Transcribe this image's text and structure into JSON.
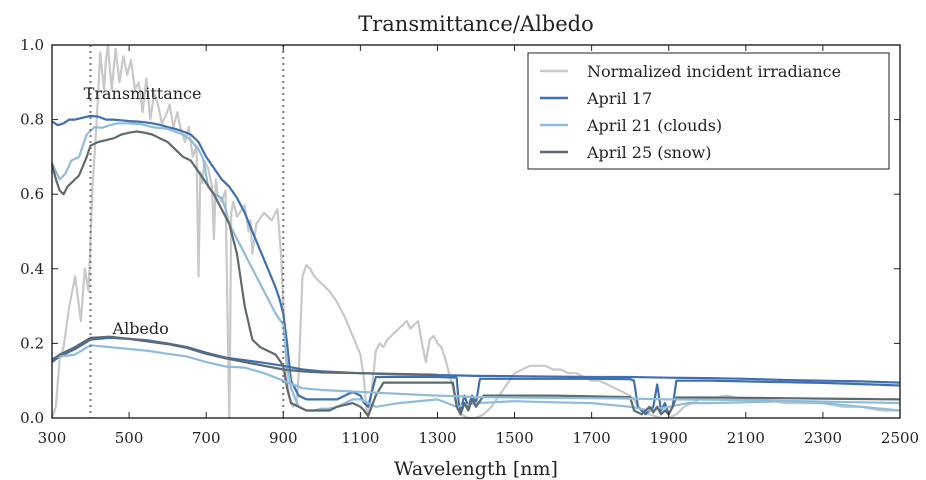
{
  "chart_data": {
    "type": "line",
    "title": "Transmittance/Albedo",
    "xlabel": "Wavelength [nm]",
    "ylabel": "",
    "xlim": [
      300,
      2500
    ],
    "ylim": [
      0.0,
      1.0
    ],
    "xticks": [
      300,
      500,
      700,
      900,
      1100,
      1300,
      1500,
      1700,
      1900,
      2100,
      2300,
      2500
    ],
    "xtick_labels": [
      "300",
      "500",
      "700",
      "900",
      "1100",
      "1300",
      "1500",
      "1700",
      "1900",
      "2100",
      "2300",
      "2500"
    ],
    "yticks": [
      0.0,
      0.2,
      0.4,
      0.6,
      0.8,
      1.0
    ],
    "ytick_labels": [
      "0.0",
      "0.2",
      "0.4",
      "0.6",
      "0.8",
      "1.0"
    ],
    "grid": false,
    "legend_position": "top-right",
    "vlines": [
      400,
      900
    ],
    "annotations": [
      {
        "text": "Transmittance",
        "x": 535,
        "y": 0.855
      },
      {
        "text": "Albedo",
        "x": 530,
        "y": 0.225
      }
    ],
    "series": [
      {
        "name": "Normalized incident irradiance",
        "color": "#c8c8c8",
        "width": 2.2,
        "x": [
          300,
          310,
          320,
          330,
          345,
          360,
          375,
          385,
          395,
          405,
          415,
          425,
          435,
          440,
          445,
          455,
          465,
          475,
          485,
          495,
          505,
          515,
          525,
          535,
          545,
          555,
          565,
          575,
          585,
          595,
          605,
          615,
          625,
          635,
          645,
          655,
          665,
          675,
          680,
          685,
          690,
          695,
          705,
          715,
          720,
          725,
          730,
          740,
          750,
          755,
          760,
          762,
          765,
          770,
          780,
          800,
          810,
          815,
          820,
          830,
          850,
          870,
          885,
          895,
          900,
          905,
          910,
          915,
          925,
          935,
          940,
          945,
          950,
          960,
          970,
          980,
          1000,
          1020,
          1040,
          1060,
          1080,
          1100,
          1110,
          1115,
          1120,
          1125,
          1130,
          1140,
          1150,
          1160,
          1170,
          1180,
          1190,
          1200,
          1210,
          1220,
          1230,
          1250,
          1260,
          1270,
          1280,
          1290,
          1300,
          1310,
          1320,
          1330,
          1340,
          1350,
          1360,
          1380,
          1400,
          1420,
          1440,
          1460,
          1480,
          1500,
          1520,
          1540,
          1560,
          1580,
          1600,
          1620,
          1640,
          1660,
          1680,
          1700,
          1720,
          1740,
          1760,
          1780,
          1800,
          1810,
          1820,
          1850,
          1880,
          1900,
          1920,
          1940,
          1960,
          1980,
          2000,
          2050,
          2100,
          2150,
          2200,
          2250,
          2300,
          2350,
          2400,
          2450,
          2500
        ],
        "y": [
          0.0,
          0.03,
          0.16,
          0.19,
          0.3,
          0.38,
          0.26,
          0.4,
          0.34,
          0.62,
          0.78,
          0.98,
          0.88,
          0.96,
          1.0,
          0.88,
          0.99,
          0.9,
          0.97,
          0.92,
          0.96,
          0.88,
          0.9,
          0.82,
          0.91,
          0.8,
          0.87,
          0.84,
          0.79,
          0.81,
          0.84,
          0.78,
          0.82,
          0.77,
          0.74,
          0.78,
          0.7,
          0.73,
          0.38,
          0.66,
          0.63,
          0.69,
          0.67,
          0.62,
          0.48,
          0.64,
          0.6,
          0.58,
          0.61,
          0.3,
          0.0,
          0.2,
          0.55,
          0.58,
          0.54,
          0.57,
          0.5,
          0.53,
          0.44,
          0.52,
          0.55,
          0.53,
          0.56,
          0.43,
          0.3,
          0.2,
          0.1,
          0.06,
          0.03,
          0.04,
          0.12,
          0.25,
          0.38,
          0.41,
          0.4,
          0.38,
          0.36,
          0.34,
          0.31,
          0.27,
          0.22,
          0.17,
          0.1,
          0.03,
          0.01,
          0.03,
          0.08,
          0.18,
          0.2,
          0.19,
          0.21,
          0.22,
          0.23,
          0.24,
          0.25,
          0.26,
          0.24,
          0.26,
          0.2,
          0.15,
          0.21,
          0.22,
          0.2,
          0.19,
          0.16,
          0.12,
          0.08,
          0.03,
          0.01,
          0.0,
          0.0,
          0.01,
          0.03,
          0.06,
          0.09,
          0.12,
          0.13,
          0.14,
          0.14,
          0.14,
          0.13,
          0.13,
          0.12,
          0.12,
          0.11,
          0.1,
          0.1,
          0.09,
          0.08,
          0.07,
          0.06,
          0.05,
          0.03,
          0.01,
          0.0,
          0.0,
          0.01,
          0.03,
          0.04,
          0.05,
          0.05,
          0.06,
          0.05,
          0.05,
          0.04,
          0.04,
          0.04,
          0.03,
          0.03,
          0.02,
          0.02
        ]
      },
      {
        "name": "April 17",
        "color": "#3f6fb0",
        "width": 2.2,
        "x": [
          300,
          315,
          330,
          345,
          360,
          380,
          400,
          420,
          440,
          460,
          480,
          500,
          520,
          540,
          560,
          580,
          600,
          620,
          640,
          660,
          680,
          700,
          720,
          740,
          760,
          780,
          800,
          820,
          840,
          860,
          880,
          890,
          895,
          900,
          910,
          920,
          940,
          960,
          980,
          1000,
          1020,
          1040,
          1060,
          1080,
          1100,
          1110,
          1120,
          1130,
          1140,
          1160,
          1200,
          1300,
          1350,
          1355,
          1360,
          1370,
          1380,
          1390,
          1400,
          1410,
          1500,
          1600,
          1700,
          1800,
          1810,
          1820,
          1840,
          1860,
          1870,
          1880,
          1890,
          1900,
          1910,
          1920,
          2000,
          2100,
          2200,
          2300,
          2400,
          2500
        ],
        "y": [
          0.795,
          0.785,
          0.79,
          0.8,
          0.8,
          0.805,
          0.81,
          0.808,
          0.8,
          0.8,
          0.798,
          0.796,
          0.795,
          0.793,
          0.79,
          0.786,
          0.78,
          0.775,
          0.768,
          0.76,
          0.74,
          0.7,
          0.67,
          0.64,
          0.62,
          0.59,
          0.55,
          0.5,
          0.45,
          0.4,
          0.35,
          0.32,
          0.3,
          0.28,
          0.2,
          0.1,
          0.06,
          0.05,
          0.05,
          0.05,
          0.05,
          0.05,
          0.06,
          0.07,
          0.06,
          0.04,
          0.03,
          0.07,
          0.11,
          0.11,
          0.11,
          0.11,
          0.108,
          0.04,
          0.02,
          0.06,
          0.03,
          0.06,
          0.04,
          0.105,
          0.105,
          0.105,
          0.105,
          0.104,
          0.1,
          0.03,
          0.01,
          0.03,
          0.09,
          0.02,
          0.04,
          0.01,
          0.03,
          0.1,
          0.1,
          0.098,
          0.096,
          0.094,
          0.091,
          0.087
        ]
      },
      {
        "name": "April 21 (clouds)",
        "color": "#8fbcd8",
        "width": 2.2,
        "x": [
          300,
          310,
          320,
          335,
          350,
          370,
          390,
          410,
          430,
          450,
          470,
          500,
          530,
          560,
          600,
          640,
          660,
          680,
          690,
          695,
          700,
          705,
          720,
          740,
          750,
          760,
          780,
          800,
          820,
          840,
          860,
          880,
          900,
          910,
          920,
          940,
          960,
          980,
          1000,
          1020,
          1040,
          1060,
          1080,
          1100,
          1120,
          1140,
          1200,
          1300,
          1350,
          1400,
          1500,
          1600,
          1700,
          1800,
          1850,
          1900,
          1950,
          2000,
          2100,
          2200,
          2300,
          2400,
          2500
        ],
        "y": [
          0.685,
          0.66,
          0.64,
          0.655,
          0.69,
          0.7,
          0.76,
          0.78,
          0.778,
          0.785,
          0.79,
          0.79,
          0.788,
          0.78,
          0.775,
          0.76,
          0.745,
          0.72,
          0.7,
          0.68,
          0.65,
          0.62,
          0.6,
          0.59,
          0.56,
          0.52,
          0.48,
          0.44,
          0.4,
          0.36,
          0.32,
          0.28,
          0.25,
          0.15,
          0.08,
          0.03,
          0.02,
          0.02,
          0.025,
          0.025,
          0.03,
          0.04,
          0.05,
          0.05,
          0.04,
          0.03,
          0.04,
          0.05,
          0.03,
          0.04,
          0.045,
          0.042,
          0.04,
          0.03,
          0.02,
          0.03,
          0.04,
          0.04,
          0.042,
          0.045,
          0.04,
          0.03,
          0.02
        ]
      },
      {
        "name": "April 25 (snow)",
        "color": "#5f6a6e",
        "width": 2.2,
        "x": [
          300,
          310,
          320,
          330,
          340,
          350,
          370,
          390,
          400,
          410,
          420,
          440,
          460,
          480,
          500,
          520,
          540,
          560,
          580,
          600,
          620,
          640,
          660,
          680,
          700,
          720,
          740,
          760,
          780,
          800,
          820,
          840,
          860,
          880,
          900,
          910,
          920,
          940,
          960,
          980,
          1000,
          1020,
          1040,
          1060,
          1080,
          1100,
          1110,
          1120,
          1140,
          1160,
          1200,
          1300,
          1340,
          1350,
          1360,
          1370,
          1380,
          1390,
          1400,
          1420,
          1500,
          1600,
          1700,
          1800,
          1810,
          1830,
          1850,
          1860,
          1870,
          1880,
          1890,
          1900,
          1910,
          1920,
          2000,
          2100,
          2200,
          2300,
          2400,
          2500
        ],
        "y": [
          0.68,
          0.64,
          0.61,
          0.6,
          0.62,
          0.63,
          0.65,
          0.7,
          0.73,
          0.735,
          0.74,
          0.745,
          0.75,
          0.76,
          0.765,
          0.768,
          0.765,
          0.76,
          0.75,
          0.74,
          0.72,
          0.7,
          0.69,
          0.66,
          0.63,
          0.6,
          0.56,
          0.52,
          0.44,
          0.3,
          0.21,
          0.19,
          0.18,
          0.17,
          0.14,
          0.08,
          0.04,
          0.03,
          0.02,
          0.02,
          0.02,
          0.02,
          0.03,
          0.035,
          0.04,
          0.03,
          0.02,
          0.005,
          0.06,
          0.095,
          0.095,
          0.095,
          0.095,
          0.03,
          0.01,
          0.04,
          0.02,
          0.05,
          0.03,
          0.06,
          0.06,
          0.06,
          0.058,
          0.056,
          0.02,
          0.01,
          0.03,
          0.015,
          0.03,
          0.01,
          0.02,
          0.01,
          0.03,
          0.055,
          0.055,
          0.054,
          0.053,
          0.052,
          0.051,
          0.05
        ]
      },
      {
        "name": "April 17",
        "color": "#3f6fb0",
        "width": 2.2,
        "x": [
          300,
          320,
          360,
          400,
          450,
          500,
          550,
          600,
          650,
          700,
          750,
          800,
          850,
          900,
          950,
          1000,
          1100,
          1200,
          1300,
          1360,
          1400,
          1500,
          1600,
          1700,
          1800,
          1900,
          2000,
          2100,
          2200,
          2300,
          2400,
          2500
        ],
        "y": [
          0.15,
          0.165,
          0.185,
          0.21,
          0.215,
          0.212,
          0.208,
          0.2,
          0.19,
          0.175,
          0.162,
          0.155,
          0.148,
          0.14,
          0.13,
          0.125,
          0.12,
          0.117,
          0.115,
          0.114,
          0.113,
          0.112,
          0.111,
          0.11,
          0.11,
          0.108,
          0.107,
          0.105,
          0.102,
          0.1,
          0.098,
          0.095
        ]
      },
      {
        "name": "April 21 (clouds)",
        "color": "#8fbcd8",
        "width": 2.2,
        "x": [
          300,
          320,
          360,
          400,
          450,
          500,
          550,
          600,
          650,
          700,
          750,
          800,
          850,
          900,
          950,
          1000,
          1100,
          1200,
          1300,
          1360,
          1400,
          1500,
          1600,
          1700,
          1800,
          1900,
          2000,
          2100,
          2200,
          2300,
          2400,
          2500
        ],
        "y": [
          0.16,
          0.165,
          0.17,
          0.195,
          0.19,
          0.185,
          0.18,
          0.172,
          0.165,
          0.15,
          0.138,
          0.135,
          0.12,
          0.1,
          0.08,
          0.075,
          0.07,
          0.065,
          0.06,
          0.058,
          0.056,
          0.055,
          0.054,
          0.053,
          0.052,
          0.05,
          0.049,
          0.048,
          0.046,
          0.044,
          0.042,
          0.04
        ]
      },
      {
        "name": "April 25 (snow)",
        "color": "#5f6a6e",
        "width": 2.2,
        "x": [
          300,
          320,
          360,
          400,
          450,
          500,
          550,
          600,
          650,
          700,
          750,
          800,
          850,
          900,
          950,
          1000,
          1100,
          1200,
          1300
        ],
        "y": [
          0.155,
          0.17,
          0.19,
          0.215,
          0.218,
          0.212,
          0.205,
          0.198,
          0.188,
          0.172,
          0.16,
          0.15,
          0.14,
          0.13,
          0.125,
          0.122,
          0.12,
          0.118,
          0.116
        ]
      }
    ],
    "legend_entries": [
      {
        "name": "Normalized incident irradiance",
        "color": "#c8c8c8"
      },
      {
        "name": "April 17",
        "color": "#3f6fb0"
      },
      {
        "name": "April 21 (clouds)",
        "color": "#8fbcd8"
      },
      {
        "name": "April 25 (snow)",
        "color": "#5f6a6e"
      }
    ]
  }
}
